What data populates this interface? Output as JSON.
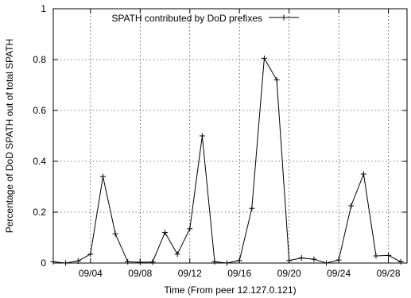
{
  "chart_data": {
    "type": "line",
    "title": "",
    "xlabel": "Time (From peer 12.127.0.121)",
    "ylabel": "Percentage of DoD SPATH out of total SPATH",
    "xlim": [
      1,
      29.5
    ],
    "ylim": [
      0,
      1
    ],
    "x_ticks": [
      {
        "value": 4,
        "label": "09/04"
      },
      {
        "value": 8,
        "label": "09/08"
      },
      {
        "value": 12,
        "label": "09/12"
      },
      {
        "value": 16,
        "label": "09/16"
      },
      {
        "value": 20,
        "label": "09/20"
      },
      {
        "value": 24,
        "label": "09/24"
      },
      {
        "value": 28,
        "label": "09/28"
      }
    ],
    "y_ticks": [
      {
        "value": 0,
        "label": "0"
      },
      {
        "value": 0.2,
        "label": "0.2"
      },
      {
        "value": 0.4,
        "label": "0.4"
      },
      {
        "value": 0.6,
        "label": "0.6"
      },
      {
        "value": 0.8,
        "label": "0.8"
      },
      {
        "value": 1,
        "label": "1"
      }
    ],
    "grid": true,
    "legend_position": "top",
    "series": [
      {
        "name": "SPATH contributed by DoD prefixes",
        "marker": "plus",
        "color": "#000000",
        "x": [
          1,
          2,
          3,
          4,
          5,
          6,
          7,
          8,
          9,
          10,
          11,
          12,
          13,
          14,
          15,
          16,
          17,
          18,
          19,
          20,
          21,
          22,
          23,
          24,
          25,
          26,
          27,
          28,
          29
        ],
        "y": [
          0.005,
          0.0,
          0.008,
          0.035,
          0.34,
          0.115,
          0.005,
          0.003,
          0.004,
          0.12,
          0.035,
          0.135,
          0.5,
          0.005,
          0.0,
          0.01,
          0.215,
          0.805,
          0.72,
          0.01,
          0.02,
          0.015,
          0.0,
          0.012,
          0.225,
          0.35,
          0.028,
          0.03,
          0.005
        ]
      }
    ]
  }
}
